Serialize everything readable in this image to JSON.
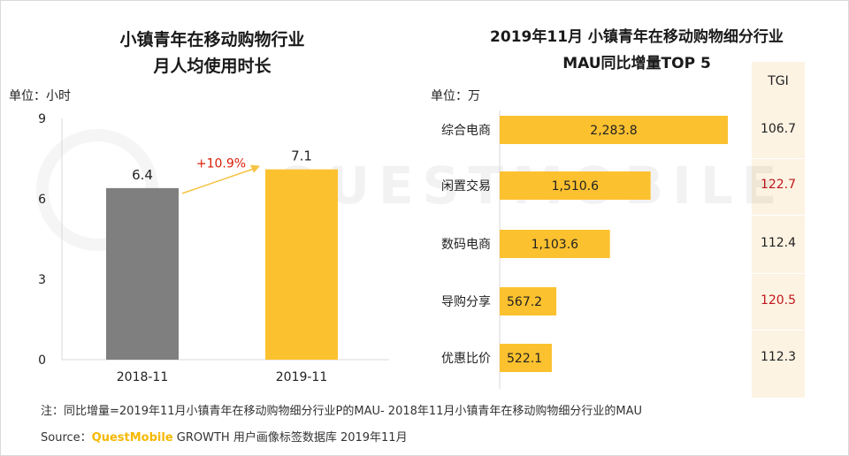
{
  "chart_data": [
    {
      "type": "bar",
      "title": [
        "小镇青年在移动购物行业",
        "月人均使用时长"
      ],
      "unit_label": "单位：小时",
      "categories": [
        "2018-11",
        "2019-11"
      ],
      "values": [
        6.4,
        7.1
      ],
      "value_labels": [
        "6.4",
        "7.1"
      ],
      "bar_colors": [
        "#7f7f7f",
        "#fcc12f"
      ],
      "ylim": [
        0,
        9
      ],
      "yticks": [
        0,
        3,
        6,
        9
      ],
      "annotation": "+10.9%",
      "annotation_color": "#d81e06"
    },
    {
      "type": "bar",
      "orientation": "horizontal",
      "title": [
        "2019年11月 小镇青年在移动购物细分行业",
        "MAU同比增量TOP 5"
      ],
      "unit_label": "单位：万",
      "categories": [
        "综合电商",
        "闲置交易",
        "数码电商",
        "导购分享",
        "优惠比价"
      ],
      "values": [
        2283.8,
        1510.6,
        1103.6,
        567.2,
        522.1
      ],
      "value_labels": [
        "2,283.8",
        "1,510.6",
        "1,103.6",
        "567.2",
        "522.1"
      ],
      "bar_color": "#fcc12f",
      "tgi": {
        "header": "TGI",
        "values": [
          "106.7",
          "122.7",
          "112.4",
          "120.5",
          "112.3"
        ],
        "highlight": [
          false,
          true,
          false,
          true,
          false
        ],
        "highlight_color": "#c0171c",
        "normal_color": "#222222"
      }
    }
  ],
  "footer": {
    "note": "注：同比增量=2019年11月小镇青年在移动购物细分行业P的MAU- 2018年11月小镇青年在移动购物细分行业的MAU",
    "source_prefix": "Source：",
    "source_brand": "QuestMobile",
    "source_suffix": " GROWTH 用户画像标签数据库 2019年11月"
  },
  "watermark": "QUESTMOBILE"
}
